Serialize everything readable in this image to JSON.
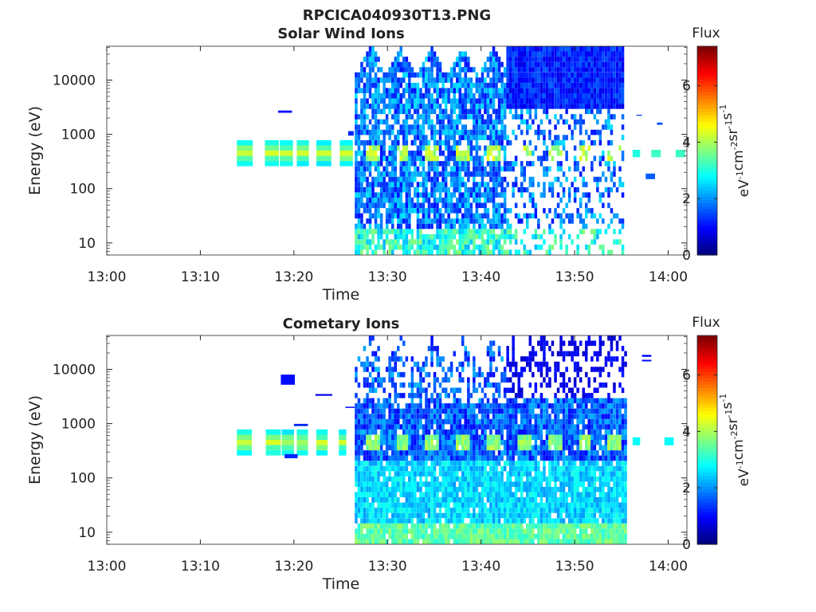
{
  "title": "RPCICA040930T13.PNG",
  "chart_data": [
    {
      "type": "heatmap",
      "title": "Solar Wind Ions",
      "xlabel": "Time",
      "ylabel": "Energy (eV)",
      "x_ticks": [
        "13:00",
        "13:10",
        "13:20",
        "13:30",
        "13:40",
        "13:50",
        "14:00"
      ],
      "xlim": [
        "13:00",
        "14:02"
      ],
      "y_ticks": [
        "10",
        "100",
        "1000",
        "10000"
      ],
      "yscale": "log",
      "ylim": [
        6,
        42000
      ],
      "colorbar": {
        "label": "Flux",
        "unit": "eV-1cm-2sr-1s-1",
        "ticks": [
          "0",
          "2",
          "4",
          "6"
        ],
        "range": [
          0,
          7.4
        ]
      },
      "data_summary": {
        "dense_interval": [
          "13:26:30",
          "13:55:00"
        ],
        "sparse_band_interval": [
          "13:14:00",
          "13:26:30"
        ],
        "peak_energy_eV": 450,
        "peak_flux": 4.5
      }
    },
    {
      "type": "heatmap",
      "title": "Cometary Ions",
      "xlabel": "Time",
      "ylabel": "Energy (eV)",
      "x_ticks": [
        "13:00",
        "13:10",
        "13:20",
        "13:30",
        "13:40",
        "13:50",
        "14:00"
      ],
      "xlim": [
        "13:00",
        "14:02"
      ],
      "y_ticks": [
        "10",
        "100",
        "1000",
        "10000"
      ],
      "yscale": "log",
      "ylim": [
        6,
        42000
      ],
      "colorbar": {
        "label": "Flux",
        "unit": "eV-1cm-2sr-1s-1",
        "ticks": [
          "0",
          "2",
          "4",
          "6"
        ],
        "range": [
          0,
          7.4
        ]
      },
      "data_summary": {
        "dense_interval": [
          "13:26:30",
          "13:55:30"
        ],
        "sparse_band_interval": [
          "13:14:00",
          "13:26:30"
        ],
        "peak_energy_eV": 450,
        "peak_flux": 4.2
      }
    }
  ]
}
